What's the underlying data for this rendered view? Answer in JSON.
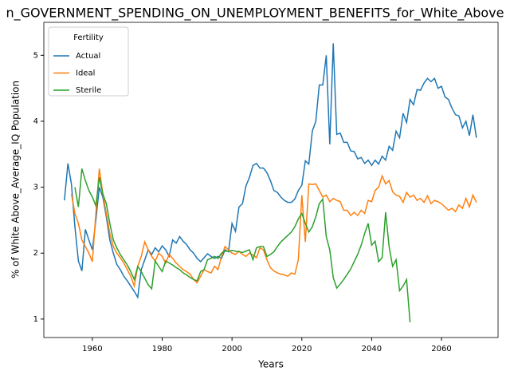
{
  "chart_data": {
    "type": "line",
    "title": "n_GOVERNMENT_SPENDING_ON_UNEMPLOYMENT_BENEFITS_for_White_Above",
    "x_label": "Years",
    "y_label": "% of White Above_Average_IQ Population",
    "legend_title": "Fertility",
    "legend_position": "upper left",
    "grid": false,
    "xlim": [
      1946.1,
      2076.2
    ],
    "ylim": [
      0.72,
      5.5
    ],
    "xticks": [
      1960,
      1980,
      2000,
      2020,
      2040,
      2060
    ],
    "yticks": [
      1,
      2,
      3,
      4,
      5
    ],
    "x": [
      1952,
      1953,
      1954,
      1955,
      1956,
      1957,
      1958,
      1959,
      1960,
      1961,
      1962,
      1963,
      1964,
      1965,
      1966,
      1967,
      1968,
      1969,
      1970,
      1971,
      1972,
      1973,
      1974,
      1975,
      1976,
      1977,
      1978,
      1979,
      1980,
      1981,
      1982,
      1983,
      1984,
      1985,
      1986,
      1987,
      1988,
      1989,
      1990,
      1991,
      1992,
      1993,
      1994,
      1995,
      1996,
      1997,
      1998,
      1999,
      2000,
      2001,
      2002,
      2003,
      2004,
      2005,
      2006,
      2007,
      2008,
      2009,
      2010,
      2011,
      2012,
      2013,
      2014,
      2015,
      2016,
      2017,
      2018,
      2019,
      2020,
      2021,
      2022,
      2023,
      2024,
      2025,
      2026,
      2027,
      2028,
      2029,
      2030,
      2031,
      2032,
      2033,
      2034,
      2035,
      2036,
      2037,
      2038,
      2039,
      2040,
      2041,
      2042,
      2043,
      2044,
      2045,
      2046,
      2047,
      2048,
      2049,
      2050,
      2051,
      2052,
      2053,
      2054,
      2055,
      2056,
      2057,
      2058,
      2059,
      2060,
      2061,
      2062,
      2063,
      2064,
      2065,
      2066,
      2067,
      2068,
      2069,
      2070
    ],
    "series": [
      {
        "name": "Actual",
        "color": "#1f77b4",
        "values": [
          2.8,
          3.36,
          3.05,
          2.4,
          1.88,
          1.73,
          2.36,
          2.2,
          2.05,
          2.5,
          3.0,
          2.85,
          2.55,
          2.2,
          2.0,
          1.83,
          1.75,
          1.65,
          1.58,
          1.5,
          1.42,
          1.33,
          1.75,
          1.9,
          2.05,
          1.98,
          2.08,
          2.02,
          2.11,
          2.05,
          1.95,
          2.2,
          2.15,
          2.25,
          2.18,
          2.13,
          2.05,
          2.0,
          1.92,
          1.87,
          1.93,
          1.99,
          1.95,
          1.92,
          1.95,
          1.92,
          2.05,
          2.02,
          2.45,
          2.33,
          2.7,
          2.75,
          3.02,
          3.15,
          3.33,
          3.36,
          3.29,
          3.29,
          3.22,
          3.1,
          2.95,
          2.92,
          2.85,
          2.8,
          2.77,
          2.77,
          2.82,
          2.95,
          3.03,
          3.4,
          3.35,
          3.85,
          4.0,
          4.55,
          4.55,
          5.0,
          3.65,
          5.18,
          3.8,
          3.82,
          3.68,
          3.68,
          3.55,
          3.54,
          3.43,
          3.45,
          3.36,
          3.41,
          3.33,
          3.41,
          3.35,
          3.47,
          3.41,
          3.62,
          3.56,
          3.85,
          3.75,
          4.12,
          3.98,
          4.33,
          4.25,
          4.48,
          4.47,
          4.58,
          4.65,
          4.6,
          4.65,
          4.5,
          4.53,
          4.37,
          4.33,
          4.2,
          4.1,
          4.08,
          3.9,
          4.0,
          3.78,
          4.1,
          3.75
        ]
      },
      {
        "name": "Ideal",
        "color": "#ff7f0e",
        "values": [
          null,
          null,
          2.9,
          2.6,
          2.45,
          2.2,
          2.1,
          2.0,
          1.87,
          2.6,
          3.28,
          2.9,
          2.6,
          2.3,
          2.1,
          2.0,
          1.93,
          1.85,
          1.75,
          1.65,
          1.5,
          1.8,
          1.95,
          2.17,
          2.05,
          1.95,
          1.88,
          2.0,
          1.95,
          1.85,
          1.98,
          1.92,
          1.85,
          1.8,
          1.75,
          1.72,
          1.68,
          1.6,
          1.55,
          1.65,
          1.75,
          1.72,
          1.7,
          1.8,
          1.75,
          1.95,
          2.1,
          2.05,
          2.0,
          1.98,
          2.03,
          1.98,
          1.95,
          2.0,
          1.97,
          1.93,
          2.08,
          2.05,
          1.9,
          1.78,
          1.73,
          1.7,
          1.68,
          1.67,
          1.65,
          1.7,
          1.68,
          1.9,
          2.88,
          2.17,
          3.05,
          3.04,
          3.05,
          2.95,
          2.85,
          2.88,
          2.78,
          2.83,
          2.8,
          2.78,
          2.65,
          2.65,
          2.57,
          2.62,
          2.57,
          2.65,
          2.6,
          2.8,
          2.78,
          2.95,
          3.0,
          3.17,
          3.05,
          3.1,
          2.93,
          2.88,
          2.86,
          2.77,
          2.92,
          2.85,
          2.88,
          2.8,
          2.83,
          2.77,
          2.87,
          2.75,
          2.8,
          2.78,
          2.75,
          2.7,
          2.65,
          2.68,
          2.63,
          2.73,
          2.68,
          2.83,
          2.7,
          2.88,
          2.77
        ]
      },
      {
        "name": "Sterile",
        "color": "#2ca02c",
        "values": [
          null,
          null,
          null,
          3.0,
          2.7,
          3.28,
          3.1,
          2.95,
          2.85,
          2.72,
          3.15,
          2.9,
          2.75,
          2.45,
          2.2,
          2.08,
          1.98,
          1.9,
          1.82,
          1.72,
          1.6,
          1.8,
          1.72,
          1.62,
          1.52,
          1.46,
          1.88,
          1.8,
          1.72,
          1.88,
          1.85,
          1.82,
          1.78,
          1.75,
          1.7,
          1.67,
          1.63,
          1.6,
          1.58,
          1.72,
          1.75,
          1.9,
          1.92,
          1.95,
          1.92,
          2.0,
          2.03,
          2.03,
          2.04,
          2.03,
          2.02,
          2.01,
          2.03,
          2.05,
          1.9,
          2.08,
          2.1,
          2.1,
          1.95,
          1.98,
          2.02,
          2.1,
          2.17,
          2.22,
          2.27,
          2.32,
          2.4,
          2.52,
          2.6,
          2.45,
          2.32,
          2.4,
          2.55,
          2.75,
          2.82,
          2.25,
          2.05,
          1.63,
          1.47,
          1.53,
          1.6,
          1.68,
          1.76,
          1.87,
          1.98,
          2.12,
          2.3,
          2.45,
          2.12,
          2.18,
          1.87,
          1.93,
          2.62,
          2.1,
          1.8,
          1.9,
          1.43,
          1.5,
          1.6,
          0.95,
          null,
          null,
          null,
          null,
          null,
          null,
          null,
          null,
          null,
          null,
          null,
          null,
          null,
          null,
          null,
          null,
          null,
          null,
          null
        ]
      }
    ]
  }
}
